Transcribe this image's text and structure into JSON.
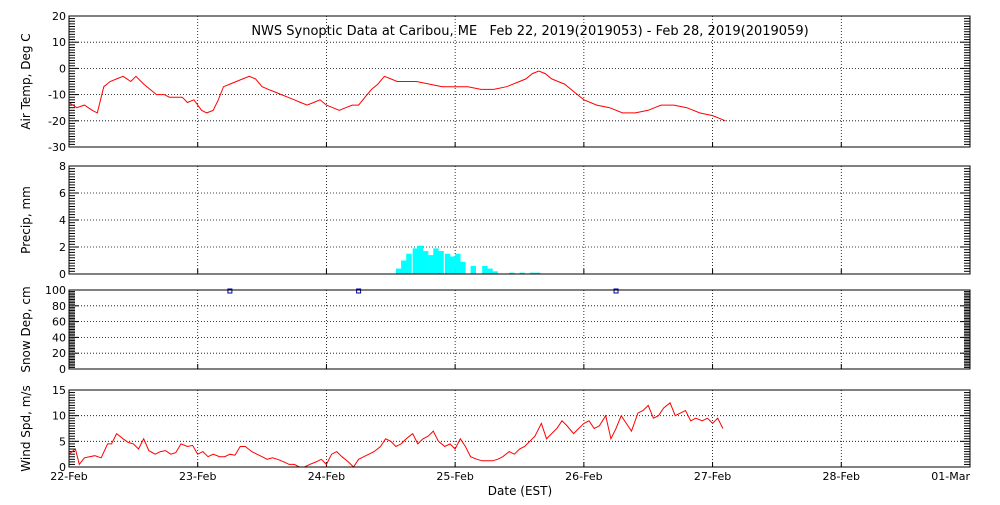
{
  "chart_data": {
    "type": "line",
    "title": "NWS Synoptic Data at Caribou, ME   Feb 22, 2019(2019053) - Feb 28, 2019(2019059)",
    "xlabel": "Date (EST)",
    "x_tick_labels": [
      "22-Feb",
      "23-Feb",
      "24-Feb",
      "25-Feb",
      "26-Feb",
      "27-Feb",
      "28-Feb",
      "01-Mar"
    ],
    "xlim_days": [
      0,
      7
    ],
    "grid": true,
    "panels": [
      {
        "id": "air-temp",
        "type": "line",
        "ylabel": "Air Temp, Deg C",
        "ylim": [
          -30,
          20
        ],
        "y_ticks": [
          -30,
          -20,
          -10,
          0,
          10,
          20
        ],
        "y_tick_labels": [
          "-30",
          "-20",
          "-10",
          "0",
          "10",
          "20"
        ],
        "color": "#ff0000",
        "series": [
          {
            "x": [
              0,
              0.06,
              0.12,
              0.18,
              0.22,
              0.27,
              0.32,
              0.37,
              0.42,
              0.48,
              0.52,
              0.58,
              0.63,
              0.68,
              0.74,
              0.78,
              0.83,
              0.88,
              0.92,
              0.97,
              1.03,
              1.07,
              1.12,
              1.16,
              1.2,
              1.25,
              1.3,
              1.35,
              1.4,
              1.45,
              1.5,
              1.55,
              1.6,
              1.65,
              1.7,
              1.75,
              1.8,
              1.85,
              1.9,
              1.95,
              2.0,
              2.05,
              2.1,
              2.15,
              2.2,
              2.25,
              2.3,
              2.35,
              2.4,
              2.45,
              2.5,
              2.55,
              2.6,
              2.7,
              2.8,
              2.9,
              3.0,
              3.1,
              3.2,
              3.3,
              3.4,
              3.5,
              3.55,
              3.6,
              3.65,
              3.7,
              3.75,
              3.8,
              3.85,
              3.9,
              3.95,
              4.0,
              4.1,
              4.2,
              4.3,
              4.4,
              4.5,
              4.55,
              4.6,
              4.7,
              4.8,
              4.9,
              5.0,
              5.05,
              5.1
            ],
            "y": [
              -13,
              -15,
              -14,
              -16,
              -17,
              -7,
              -5,
              -4,
              -3,
              -5,
              -3,
              -6,
              -8,
              -10,
              -10,
              -11,
              -11,
              -11,
              -13,
              -12,
              -16,
              -17,
              -16,
              -12,
              -7,
              -6,
              -5,
              -4,
              -3,
              -4,
              -7,
              -8,
              -9,
              -10,
              -11,
              -12,
              -13,
              -14,
              -13,
              -12,
              -14,
              -15,
              -16,
              -15,
              -14,
              -14,
              -11,
              -8,
              -6,
              -3,
              -4,
              -5,
              -5,
              -5,
              -6,
              -7,
              -7,
              -7,
              -8,
              -8,
              -7,
              -5,
              -4,
              -2,
              -1,
              -2,
              -4,
              -5,
              -6,
              -8,
              -10,
              -12,
              -14,
              -15,
              -17,
              -17,
              -16,
              -15,
              -14,
              -14,
              -15,
              -17,
              -18,
              -19,
              -20
            ]
          }
        ]
      },
      {
        "id": "precip",
        "type": "bar",
        "ylabel": "Precip, mm",
        "ylim": [
          0,
          8
        ],
        "y_ticks": [
          0,
          2,
          4,
          6,
          8
        ],
        "y_tick_labels": [
          "0",
          "2",
          "4",
          "6",
          "8"
        ],
        "color": "#00ffff",
        "bar_width_days": 0.0417,
        "series": [
          {
            "x": [
              2.54,
              2.58,
              2.62,
              2.67,
              2.71,
              2.75,
              2.79,
              2.83,
              2.87,
              2.92,
              2.96,
              3.0,
              3.04,
              3.12,
              3.21,
              3.25,
              3.29,
              3.42,
              3.5,
              3.58,
              3.62
            ],
            "y": [
              0.4,
              1.0,
              1.5,
              1.9,
              2.1,
              1.7,
              1.4,
              1.9,
              1.7,
              1.5,
              1.3,
              1.5,
              0.9,
              0.6,
              0.6,
              0.4,
              0.2,
              0.1,
              0.1,
              0.1,
              0.1
            ]
          }
        ]
      },
      {
        "id": "snow-depth",
        "type": "scatter",
        "ylabel": "Snow Dep, cm",
        "ylim": [
          0,
          100
        ],
        "y_ticks": [
          0,
          20,
          40,
          60,
          80,
          100
        ],
        "y_tick_labels": [
          "0",
          "20",
          "40",
          "60",
          "80",
          "100"
        ],
        "color": "#0000aa",
        "series": [
          {
            "x": [
              1.25,
              2.25,
              4.25
            ],
            "y": [
              100,
              100,
              100
            ]
          }
        ]
      },
      {
        "id": "wind-speed",
        "type": "line",
        "ylabel": "Wind Spd, m/s",
        "ylim": [
          0,
          15
        ],
        "y_ticks": [
          0,
          5,
          10,
          15
        ],
        "y_tick_labels": [
          "0",
          "5",
          "10",
          "15"
        ],
        "color": "#ff0000",
        "series": [
          {
            "x": [
              0,
              0.05,
              0.08,
              0.12,
              0.16,
              0.2,
              0.25,
              0.3,
              0.33,
              0.37,
              0.42,
              0.46,
              0.5,
              0.54,
              0.58,
              0.62,
              0.67,
              0.71,
              0.75,
              0.79,
              0.83,
              0.87,
              0.92,
              0.96,
              1.0,
              1.04,
              1.08,
              1.12,
              1.17,
              1.21,
              1.25,
              1.29,
              1.33,
              1.37,
              1.42,
              1.46,
              1.5,
              1.54,
              1.58,
              1.62,
              1.67,
              1.71,
              1.75,
              1.79,
              1.83,
              1.87,
              1.92,
              1.96,
              2.0,
              2.04,
              2.08,
              2.12,
              2.17,
              2.21,
              2.25,
              2.29,
              2.33,
              2.37,
              2.42,
              2.46,
              2.5,
              2.54,
              2.58,
              2.62,
              2.67,
              2.71,
              2.75,
              2.79,
              2.83,
              2.87,
              2.92,
              2.96,
              3.0,
              3.04,
              3.08,
              3.12,
              3.17,
              3.21,
              3.25,
              3.29,
              3.33,
              3.37,
              3.42,
              3.46,
              3.5,
              3.54,
              3.58,
              3.62,
              3.67,
              3.71,
              3.75,
              3.79,
              3.83,
              3.87,
              3.92,
              3.96,
              4.0,
              4.04,
              4.08,
              4.12,
              4.17,
              4.21,
              4.25,
              4.29,
              4.33,
              4.37,
              4.42,
              4.46,
              4.5,
              4.54,
              4.58,
              4.62,
              4.67,
              4.71,
              4.75,
              4.79,
              4.83,
              4.87,
              4.92,
              4.96,
              5.0,
              5.04,
              5.08
            ],
            "y": [
              2.5,
              3.5,
              0.5,
              1.8,
              2.0,
              2.2,
              1.8,
              4.5,
              4.5,
              6.5,
              5.5,
              4.8,
              4.5,
              3.5,
              5.5,
              3.2,
              2.5,
              3.0,
              3.2,
              2.5,
              2.8,
              4.5,
              4.0,
              4.2,
              2.5,
              3.0,
              2.0,
              2.5,
              2.0,
              2.0,
              2.5,
              2.3,
              4.0,
              4.0,
              3.0,
              2.5,
              2.0,
              1.5,
              1.8,
              1.5,
              1.0,
              0.5,
              0.5,
              0.0,
              0.0,
              0.5,
              1.0,
              1.5,
              0.5,
              2.5,
              3.0,
              2.0,
              1.0,
              0.0,
              1.5,
              2.0,
              2.5,
              3.0,
              4.0,
              5.5,
              5.0,
              4.0,
              4.5,
              5.5,
              6.5,
              4.5,
              5.5,
              6.0,
              7.0,
              5.0,
              4.0,
              4.5,
              3.5,
              5.5,
              4.0,
              2.0,
              1.5,
              1.2,
              1.2,
              1.2,
              1.5,
              2.0,
              3.0,
              2.5,
              3.5,
              4.0,
              5.0,
              6.0,
              8.5,
              5.5,
              6.5,
              7.5,
              9.0,
              8.0,
              6.5,
              7.5,
              8.5,
              9.0,
              7.5,
              8.0,
              10.0,
              5.5,
              7.5,
              10.0,
              8.5,
              7.0,
              10.5,
              11.0,
              12.0,
              9.5,
              10.0,
              11.5,
              12.5,
              10.0,
              10.5,
              11.0,
              9.0,
              9.5,
              9.0,
              9.5,
              8.5,
              9.5,
              7.5
            ]
          }
        ]
      }
    ]
  }
}
